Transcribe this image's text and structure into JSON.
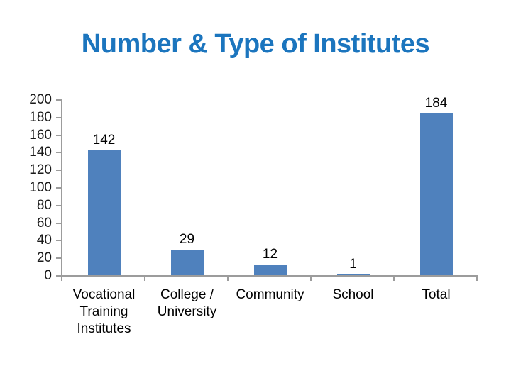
{
  "slide": {
    "title": "Number & Type of Institutes",
    "title_color": "#1B75BE",
    "background_color": "#FFFFFF"
  },
  "chart_data": {
    "type": "bar",
    "title": "Number & Type of Institutes",
    "categories": [
      "Vocational Training Institutes",
      "College / University",
      "Community",
      "School",
      "Total"
    ],
    "values": [
      142,
      29,
      12,
      1,
      184
    ],
    "data_labels": [
      "142",
      "29",
      "12",
      "1",
      "184"
    ],
    "yticks": [
      0,
      20,
      40,
      60,
      80,
      100,
      120,
      140,
      160,
      180,
      200
    ],
    "ylim": [
      0,
      200
    ],
    "xlabel": "",
    "ylabel": "",
    "grid": false,
    "legend": false,
    "bar_color": "#4F81BD",
    "axis_color": "#9C9C9C",
    "label_color": "#000000"
  }
}
